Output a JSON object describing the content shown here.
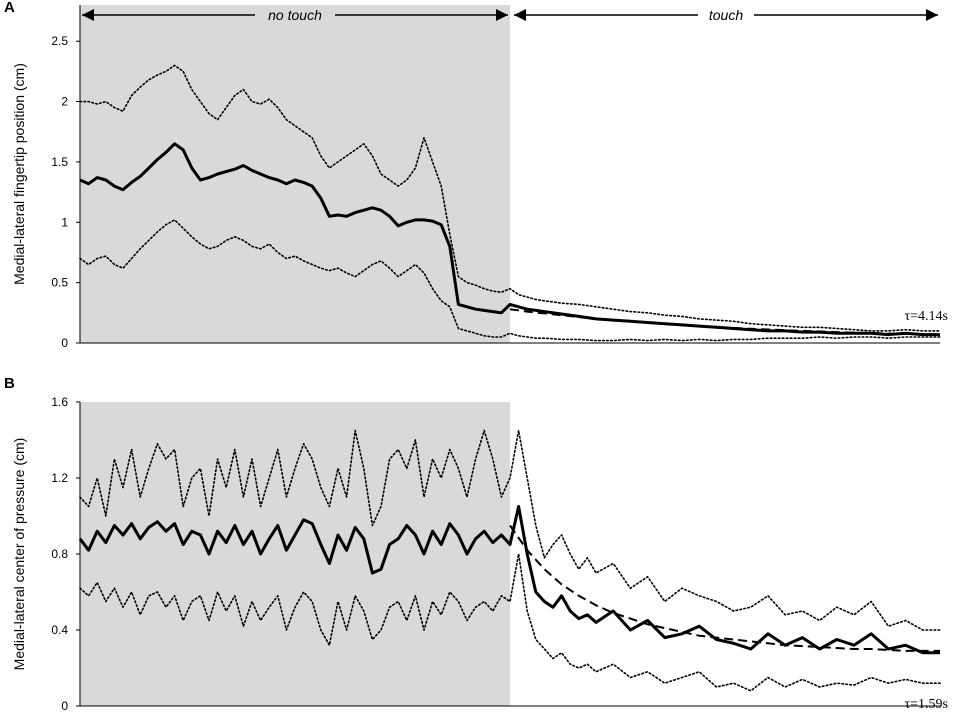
{
  "chart_data": [
    {
      "panel": "A",
      "type": "line",
      "title": "",
      "xlabel": "",
      "ylabel": "Medial-lateral fingertip position (cm)",
      "ylim": [
        0,
        2.8
      ],
      "yticks": [
        "0",
        "0.5",
        "1",
        "1.5",
        "2",
        "2.5"
      ],
      "xlim": [
        0,
        100
      ],
      "touch_onset": 50,
      "grid": false,
      "legend": "none",
      "phase_labels": {
        "no_touch": "no touch",
        "touch": "touch"
      },
      "annotation": "τ=4.14s",
      "series": [
        {
          "role": "mean",
          "style": "solid-thick",
          "x": [
            0,
            1,
            2,
            3,
            4,
            5,
            6,
            7,
            8,
            9,
            10,
            11,
            12,
            13,
            14,
            15,
            16,
            17,
            18,
            19,
            20,
            21,
            22,
            23,
            24,
            25,
            26,
            27,
            28,
            29,
            30,
            31,
            32,
            33,
            34,
            35,
            36,
            37,
            38,
            39,
            40,
            41,
            42,
            43,
            44,
            45,
            46,
            47,
            48,
            49,
            50,
            51,
            52,
            53,
            54,
            56,
            58,
            60,
            62,
            64,
            66,
            68,
            70,
            72,
            74,
            76,
            78,
            80,
            82,
            84,
            86,
            88,
            90,
            92,
            94,
            96,
            98,
            100
          ],
          "y": [
            1.35,
            1.32,
            1.37,
            1.35,
            1.3,
            1.27,
            1.33,
            1.38,
            1.45,
            1.52,
            1.58,
            1.65,
            1.6,
            1.45,
            1.35,
            1.37,
            1.4,
            1.42,
            1.44,
            1.47,
            1.43,
            1.4,
            1.37,
            1.35,
            1.32,
            1.35,
            1.33,
            1.3,
            1.2,
            1.05,
            1.06,
            1.05,
            1.08,
            1.1,
            1.12,
            1.1,
            1.05,
            0.97,
            1.0,
            1.02,
            1.02,
            1.01,
            0.98,
            0.8,
            0.32,
            0.3,
            0.28,
            0.27,
            0.26,
            0.25,
            0.32,
            0.3,
            0.28,
            0.27,
            0.26,
            0.24,
            0.22,
            0.2,
            0.19,
            0.18,
            0.17,
            0.16,
            0.15,
            0.14,
            0.13,
            0.12,
            0.11,
            0.1,
            0.1,
            0.09,
            0.09,
            0.08,
            0.08,
            0.08,
            0.07,
            0.08,
            0.07,
            0.07
          ]
        },
        {
          "role": "upper",
          "style": "dotted",
          "x": [
            0,
            1,
            2,
            3,
            4,
            5,
            6,
            7,
            8,
            9,
            10,
            11,
            12,
            13,
            14,
            15,
            16,
            17,
            18,
            19,
            20,
            21,
            22,
            23,
            24,
            25,
            26,
            27,
            28,
            29,
            30,
            31,
            32,
            33,
            34,
            35,
            36,
            37,
            38,
            39,
            40,
            41,
            42,
            43,
            44,
            45,
            46,
            47,
            48,
            49,
            50,
            51,
            52,
            53,
            54,
            56,
            58,
            60,
            62,
            64,
            66,
            68,
            70,
            72,
            74,
            76,
            78,
            80,
            82,
            84,
            86,
            88,
            90,
            92,
            94,
            96,
            98,
            100
          ],
          "y": [
            2.0,
            2.0,
            1.98,
            2.0,
            1.95,
            1.92,
            2.05,
            2.12,
            2.18,
            2.22,
            2.25,
            2.3,
            2.25,
            2.1,
            2.0,
            1.9,
            1.85,
            1.95,
            2.05,
            2.1,
            2.0,
            1.98,
            2.02,
            1.95,
            1.85,
            1.8,
            1.75,
            1.7,
            1.55,
            1.45,
            1.5,
            1.55,
            1.6,
            1.65,
            1.55,
            1.4,
            1.35,
            1.3,
            1.35,
            1.45,
            1.7,
            1.5,
            1.3,
            0.9,
            0.55,
            0.5,
            0.48,
            0.45,
            0.43,
            0.42,
            0.45,
            0.4,
            0.38,
            0.36,
            0.35,
            0.33,
            0.32,
            0.3,
            0.28,
            0.26,
            0.25,
            0.23,
            0.22,
            0.2,
            0.19,
            0.18,
            0.16,
            0.15,
            0.14,
            0.13,
            0.13,
            0.12,
            0.11,
            0.1,
            0.1,
            0.11,
            0.1,
            0.1
          ]
        },
        {
          "role": "lower",
          "style": "dotted",
          "x": [
            0,
            1,
            2,
            3,
            4,
            5,
            6,
            7,
            8,
            9,
            10,
            11,
            12,
            13,
            14,
            15,
            16,
            17,
            18,
            19,
            20,
            21,
            22,
            23,
            24,
            25,
            26,
            27,
            28,
            29,
            30,
            31,
            32,
            33,
            34,
            35,
            36,
            37,
            38,
            39,
            40,
            41,
            42,
            43,
            44,
            45,
            46,
            47,
            48,
            49,
            50,
            51,
            52,
            53,
            54,
            56,
            58,
            60,
            62,
            64,
            66,
            68,
            70,
            72,
            74,
            76,
            78,
            80,
            82,
            84,
            86,
            88,
            90,
            92,
            94,
            96,
            98,
            100
          ],
          "y": [
            0.7,
            0.65,
            0.7,
            0.72,
            0.65,
            0.62,
            0.7,
            0.78,
            0.85,
            0.92,
            0.98,
            1.02,
            0.95,
            0.88,
            0.82,
            0.78,
            0.8,
            0.85,
            0.88,
            0.85,
            0.8,
            0.78,
            0.82,
            0.75,
            0.7,
            0.72,
            0.68,
            0.65,
            0.62,
            0.6,
            0.62,
            0.58,
            0.55,
            0.6,
            0.65,
            0.68,
            0.62,
            0.55,
            0.6,
            0.65,
            0.58,
            0.45,
            0.35,
            0.3,
            0.12,
            0.1,
            0.08,
            0.06,
            0.05,
            0.05,
            0.08,
            0.06,
            0.05,
            0.04,
            0.04,
            0.03,
            0.03,
            0.02,
            0.02,
            0.03,
            0.02,
            0.03,
            0.02,
            0.03,
            0.02,
            0.03,
            0.03,
            0.04,
            0.04,
            0.04,
            0.05,
            0.04,
            0.05,
            0.05,
            0.04,
            0.05,
            0.05,
            0.05
          ]
        },
        {
          "role": "fit",
          "style": "dashed",
          "x": [
            50,
            52,
            54,
            56,
            58,
            60,
            62,
            64,
            66,
            68,
            70,
            72,
            74,
            76,
            78,
            80,
            82,
            84,
            86,
            88,
            90,
            92,
            94,
            96,
            98,
            100
          ],
          "y": [
            0.28,
            0.26,
            0.245,
            0.23,
            0.215,
            0.2,
            0.19,
            0.18,
            0.17,
            0.16,
            0.15,
            0.14,
            0.132,
            0.125,
            0.118,
            0.112,
            0.106,
            0.1,
            0.095,
            0.09,
            0.086,
            0.082,
            0.078,
            0.075,
            0.072,
            0.07
          ]
        }
      ]
    },
    {
      "panel": "B",
      "type": "line",
      "title": "",
      "xlabel": "",
      "ylabel": "Medial-lateral center of pressure (cm)",
      "ylim": [
        0,
        1.6
      ],
      "yticks": [
        "0",
        "0.4",
        "0.8",
        "1.2",
        "1.6"
      ],
      "xlim": [
        0,
        100
      ],
      "touch_onset": 50,
      "grid": false,
      "legend": "none",
      "annotation": "τ=1.59s",
      "series": [
        {
          "role": "mean",
          "style": "solid-thick",
          "x": [
            0,
            1,
            2,
            3,
            4,
            5,
            6,
            7,
            8,
            9,
            10,
            11,
            12,
            13,
            14,
            15,
            16,
            17,
            18,
            19,
            20,
            21,
            22,
            23,
            24,
            25,
            26,
            27,
            28,
            29,
            30,
            31,
            32,
            33,
            34,
            35,
            36,
            37,
            38,
            39,
            40,
            41,
            42,
            43,
            44,
            45,
            46,
            47,
            48,
            49,
            50,
            51,
            52,
            53,
            54,
            55,
            56,
            57,
            58,
            59,
            60,
            62,
            64,
            66,
            68,
            70,
            72,
            74,
            76,
            78,
            80,
            82,
            84,
            86,
            88,
            90,
            92,
            94,
            96,
            98,
            100
          ],
          "y": [
            0.88,
            0.82,
            0.92,
            0.86,
            0.95,
            0.9,
            0.96,
            0.88,
            0.94,
            0.97,
            0.92,
            0.96,
            0.85,
            0.92,
            0.9,
            0.8,
            0.92,
            0.86,
            0.95,
            0.85,
            0.92,
            0.8,
            0.88,
            0.95,
            0.82,
            0.9,
            0.98,
            0.96,
            0.85,
            0.75,
            0.9,
            0.82,
            0.94,
            0.88,
            0.7,
            0.72,
            0.85,
            0.88,
            0.95,
            0.9,
            0.8,
            0.92,
            0.85,
            0.96,
            0.9,
            0.8,
            0.88,
            0.92,
            0.86,
            0.9,
            0.85,
            1.05,
            0.8,
            0.6,
            0.55,
            0.52,
            0.58,
            0.5,
            0.46,
            0.48,
            0.44,
            0.5,
            0.4,
            0.45,
            0.36,
            0.38,
            0.42,
            0.35,
            0.33,
            0.3,
            0.38,
            0.32,
            0.36,
            0.3,
            0.35,
            0.32,
            0.38,
            0.3,
            0.32,
            0.28,
            0.28
          ]
        },
        {
          "role": "upper",
          "style": "dotted",
          "x": [
            0,
            1,
            2,
            3,
            4,
            5,
            6,
            7,
            8,
            9,
            10,
            11,
            12,
            13,
            14,
            15,
            16,
            17,
            18,
            19,
            20,
            21,
            22,
            23,
            24,
            25,
            26,
            27,
            28,
            29,
            30,
            31,
            32,
            33,
            34,
            35,
            36,
            37,
            38,
            39,
            40,
            41,
            42,
            43,
            44,
            45,
            46,
            47,
            48,
            49,
            50,
            51,
            52,
            53,
            54,
            55,
            56,
            57,
            58,
            59,
            60,
            62,
            64,
            66,
            68,
            70,
            72,
            74,
            76,
            78,
            80,
            82,
            84,
            86,
            88,
            90,
            92,
            94,
            96,
            98,
            100
          ],
          "y": [
            1.1,
            1.05,
            1.2,
            1.0,
            1.3,
            1.15,
            1.35,
            1.1,
            1.25,
            1.38,
            1.3,
            1.35,
            1.05,
            1.2,
            1.25,
            1.0,
            1.3,
            1.15,
            1.35,
            1.1,
            1.3,
            1.05,
            1.2,
            1.35,
            1.1,
            1.25,
            1.38,
            1.3,
            1.15,
            1.05,
            1.25,
            1.1,
            1.45,
            1.25,
            0.95,
            1.05,
            1.3,
            1.35,
            1.25,
            1.4,
            1.1,
            1.3,
            1.2,
            1.35,
            1.25,
            1.1,
            1.3,
            1.45,
            1.3,
            1.1,
            1.2,
            1.45,
            1.2,
            0.95,
            0.78,
            0.85,
            0.9,
            0.8,
            0.72,
            0.78,
            0.7,
            0.75,
            0.62,
            0.68,
            0.55,
            0.62,
            0.58,
            0.55,
            0.5,
            0.52,
            0.58,
            0.48,
            0.5,
            0.45,
            0.52,
            0.48,
            0.55,
            0.42,
            0.45,
            0.4,
            0.4
          ]
        },
        {
          "role": "lower",
          "style": "dotted",
          "x": [
            0,
            1,
            2,
            3,
            4,
            5,
            6,
            7,
            8,
            9,
            10,
            11,
            12,
            13,
            14,
            15,
            16,
            17,
            18,
            19,
            20,
            21,
            22,
            23,
            24,
            25,
            26,
            27,
            28,
            29,
            30,
            31,
            32,
            33,
            34,
            35,
            36,
            37,
            38,
            39,
            40,
            41,
            42,
            43,
            44,
            45,
            46,
            47,
            48,
            49,
            50,
            51,
            52,
            53,
            54,
            55,
            56,
            57,
            58,
            59,
            60,
            62,
            64,
            66,
            68,
            70,
            72,
            74,
            76,
            78,
            80,
            82,
            84,
            86,
            88,
            90,
            92,
            94,
            96,
            98,
            100
          ],
          "y": [
            0.62,
            0.58,
            0.65,
            0.55,
            0.62,
            0.52,
            0.6,
            0.48,
            0.58,
            0.6,
            0.52,
            0.58,
            0.45,
            0.55,
            0.58,
            0.45,
            0.6,
            0.5,
            0.58,
            0.42,
            0.55,
            0.45,
            0.52,
            0.58,
            0.4,
            0.52,
            0.6,
            0.55,
            0.4,
            0.32,
            0.55,
            0.4,
            0.58,
            0.5,
            0.35,
            0.4,
            0.52,
            0.55,
            0.45,
            0.58,
            0.4,
            0.55,
            0.48,
            0.6,
            0.55,
            0.45,
            0.52,
            0.55,
            0.5,
            0.58,
            0.55,
            0.8,
            0.5,
            0.35,
            0.3,
            0.25,
            0.28,
            0.22,
            0.2,
            0.22,
            0.18,
            0.22,
            0.15,
            0.18,
            0.12,
            0.15,
            0.18,
            0.1,
            0.12,
            0.08,
            0.15,
            0.1,
            0.14,
            0.1,
            0.12,
            0.11,
            0.15,
            0.12,
            0.14,
            0.12,
            0.12
          ]
        },
        {
          "role": "fit",
          "style": "dashed",
          "x": [
            50,
            52,
            54,
            56,
            58,
            60,
            62,
            64,
            66,
            68,
            70,
            72,
            74,
            76,
            78,
            80,
            82,
            84,
            86,
            88,
            90,
            92,
            94,
            96,
            98,
            100
          ],
          "y": [
            0.95,
            0.82,
            0.72,
            0.64,
            0.58,
            0.53,
            0.49,
            0.46,
            0.43,
            0.41,
            0.39,
            0.37,
            0.36,
            0.35,
            0.34,
            0.33,
            0.32,
            0.315,
            0.31,
            0.305,
            0.3,
            0.3,
            0.295,
            0.29,
            0.29,
            0.29
          ]
        }
      ]
    }
  ]
}
